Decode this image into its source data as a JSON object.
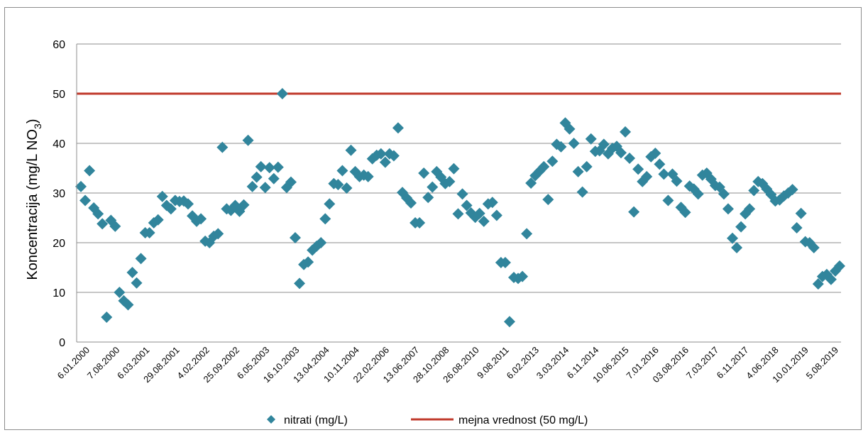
{
  "chart_data": {
    "type": "scatter",
    "ylabel": "Koncentracija (mg/L NO",
    "ylabel_sub": "3",
    "ylabel_suffix": ")",
    "ylim": [
      0,
      60
    ],
    "yticks": [
      0,
      10,
      20,
      30,
      40,
      50,
      60
    ],
    "grid": true,
    "legend_position": "bottom",
    "x_tick_labels": [
      "6.01.2000",
      "7.08.2000",
      "6.03.2001",
      "29.08.2001",
      "4.02.2002",
      "25.09.2002",
      "6.05.2003",
      "16.10.2003",
      "13.04.2004",
      "10.11.2004",
      "22.02.2006",
      "13.06.2007",
      "28.10.2008",
      "26.08.2010",
      "9.08.2011",
      "6.02.2013",
      "3.03.2014",
      "6.11.2014",
      "10.06.2015",
      "7.01.2016",
      "03.08.2016",
      "7.03.2017",
      "6.11.2017",
      "4.06.2018",
      "10.01.2019",
      "5.08.2019"
    ],
    "series": [
      {
        "name": "nitrati (mg/L)",
        "kind": "scatter",
        "color": "#31859c",
        "values": [
          31.3,
          28.5,
          34.5,
          27.0,
          25.8,
          23.8,
          5.0,
          24.5,
          23.3,
          10.0,
          8.3,
          7.5,
          14.0,
          11.9,
          16.8,
          22.0,
          22.0,
          24.0,
          24.6,
          29.3,
          27.5,
          26.8,
          28.5,
          28.3,
          28.4,
          27.8,
          25.4,
          24.3,
          24.8,
          20.3,
          20.0,
          21.3,
          21.8,
          39.2,
          26.8,
          26.5,
          27.5,
          26.3,
          27.6,
          40.6,
          31.3,
          33.2,
          35.3,
          31.1,
          35.1,
          32.9,
          35.2,
          50.0,
          31.1,
          32.2,
          21.0,
          11.8,
          15.6,
          16.1,
          18.5,
          19.3,
          20.0,
          24.8,
          27.8,
          31.9,
          31.7,
          34.5,
          31.0,
          38.6,
          34.3,
          33.3,
          33.6,
          33.3,
          36.9,
          37.6,
          37.9,
          36.2,
          37.9,
          37.5,
          43.1,
          30.1,
          29.0,
          28.0,
          24.0,
          24.0,
          34.0,
          29.1,
          31.2,
          34.3,
          33.2,
          31.9,
          32.3,
          34.9,
          25.8,
          29.8,
          27.5,
          26.0,
          25.1,
          25.9,
          24.3,
          27.8,
          28.1,
          25.5,
          16.0,
          16.0,
          4.1,
          13.0,
          12.8,
          13.2,
          21.8,
          32.0,
          33.5,
          34.4,
          35.3,
          28.7,
          36.4,
          39.8,
          39.3,
          44.1,
          42.9,
          40.0,
          34.3,
          30.2,
          35.3,
          40.9,
          38.4,
          38.5,
          39.8,
          37.9,
          39.0,
          39.4,
          38.1,
          42.3,
          37.0,
          26.2,
          34.8,
          32.3,
          33.3,
          37.3,
          38.0,
          35.8,
          33.8,
          28.5,
          33.8,
          32.4,
          27.1,
          26.1,
          31.4,
          30.8,
          29.8,
          33.6,
          34.0,
          32.8,
          31.5,
          31.2,
          29.8,
          26.8,
          20.9,
          19.0,
          23.2,
          25.8,
          26.8,
          30.5,
          32.3,
          31.9,
          30.8,
          29.7,
          28.4,
          28.6,
          29.4,
          30.0,
          30.7,
          23.0,
          25.9,
          20.2,
          20.0,
          19.0,
          11.7,
          13.2,
          13.6,
          12.6,
          14.3,
          15.3
        ]
      },
      {
        "name": "mejna vrednost (50 mg/L)",
        "kind": "line",
        "color": "#c0392b",
        "value": 50
      }
    ]
  }
}
